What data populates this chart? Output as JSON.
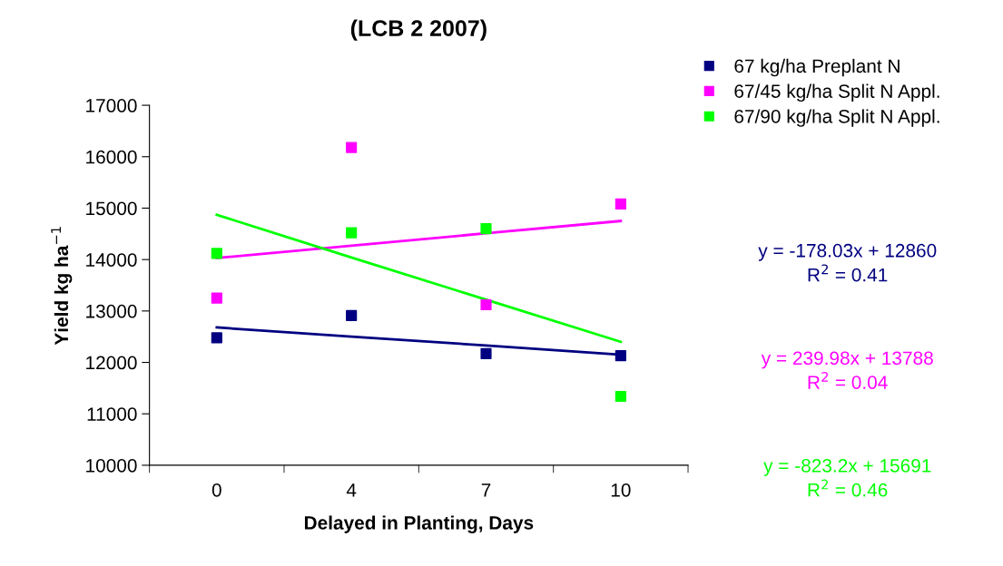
{
  "chart_data": {
    "type": "scatter",
    "title": "(LCB 2 2007)",
    "xlabel": "Delayed in Planting, Days",
    "ylabel": "Yield kg ha$^{−1}$",
    "categories": [
      "0",
      "4",
      "7",
      "10"
    ],
    "series": [
      {
        "name": "67 kg/ha Preplant N",
        "color": "#000080",
        "values": [
          12480,
          12910,
          12170,
          12130
        ]
      },
      {
        "name": "67/45 kg/ha Split N Appl.",
        "color": "#ff00ff",
        "values": [
          13250,
          16180,
          13120,
          15080
        ]
      },
      {
        "name": "67/90 kg/ha Split N Appl.",
        "color": "#00ff00",
        "values": [
          14120,
          14520,
          14600,
          11340
        ]
      },
      {
        "type": "line",
        "marker": "none",
        "color": "#000080",
        "x": [
          "0",
          "4",
          "7",
          "10"
        ],
        "values": [
          12680,
          12500,
          12330,
          12150
        ]
      },
      {
        "type": "line",
        "marker": "none",
        "color": "#ff00ff",
        "x": [
          "0",
          "4",
          "7",
          "10"
        ],
        "values": [
          14030,
          14270,
          14510,
          14750
        ]
      },
      {
        "type": "line",
        "marker": "none",
        "color": "#00ff00",
        "x": [
          "0",
          "4",
          "7",
          "10"
        ],
        "values": [
          14870,
          14040,
          13220,
          12400
        ]
      }
    ],
    "annotations": [
      "y = -178.03x + 12860\nR$^{2}$ = 0.41",
      "y = 239.98x + 13788\nR$^{2}$ = 0.04",
      "y = -823.2x + 15691\nR$^{2}$ = 0.46"
    ],
    "ylim": [
      10000,
      17000
    ],
    "yticks": [
      10000,
      11000,
      12000,
      13000,
      14000,
      15000,
      16000,
      17000
    ],
    "marker": "square",
    "grid": false,
    "legend": "top right"
  }
}
